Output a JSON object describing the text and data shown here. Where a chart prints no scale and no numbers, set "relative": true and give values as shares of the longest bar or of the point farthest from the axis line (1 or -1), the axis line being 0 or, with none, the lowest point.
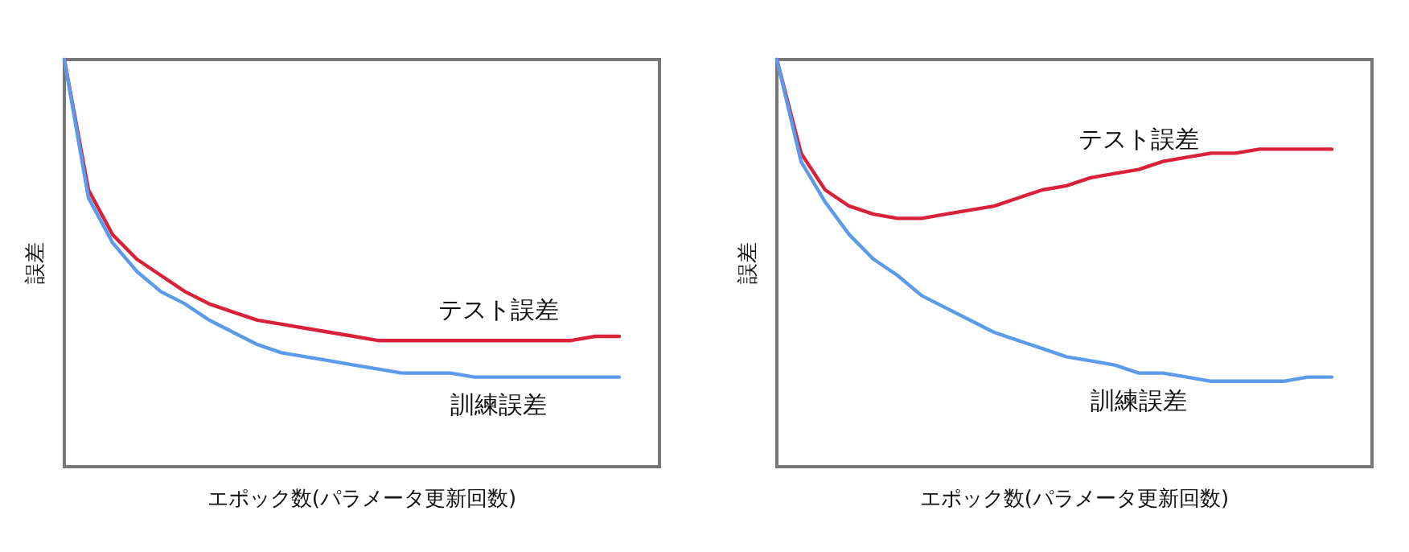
{
  "chart_data": [
    {
      "type": "line",
      "relative": true,
      "xlabel": "エポック数(パラメータ更新回数)",
      "ylabel": "誤差",
      "categories": [
        null,
        null,
        null,
        null,
        null,
        null,
        null,
        null,
        null,
        null,
        null,
        null,
        null,
        null,
        null,
        null,
        null,
        null,
        null,
        null,
        null,
        null,
        null,
        null
      ],
      "series": [
        {
          "name": "テスト誤差",
          "color": "#d9213a",
          "values": [
            1.0,
            0.68,
            0.57,
            0.51,
            0.47,
            0.43,
            0.4,
            0.38,
            0.36,
            0.35,
            0.34,
            0.33,
            0.32,
            0.31,
            0.31,
            0.31,
            0.31,
            0.31,
            0.31,
            0.31,
            0.31,
            0.31,
            0.32,
            0.32
          ]
        },
        {
          "name": "訓練誤差",
          "color": "#5b9bea",
          "values": [
            1.0,
            0.66,
            0.55,
            0.48,
            0.43,
            0.4,
            0.36,
            0.33,
            0.3,
            0.28,
            0.27,
            0.26,
            0.25,
            0.24,
            0.23,
            0.23,
            0.23,
            0.22,
            0.22,
            0.22,
            0.22,
            0.22,
            0.22,
            0.22
          ]
        }
      ]
    },
    {
      "type": "line",
      "relative": true,
      "xlabel": "エポック数(パラメータ更新回数)",
      "ylabel": "誤差",
      "categories": [
        null,
        null,
        null,
        null,
        null,
        null,
        null,
        null,
        null,
        null,
        null,
        null,
        null,
        null,
        null,
        null,
        null,
        null,
        null,
        null,
        null,
        null,
        null,
        null
      ],
      "series": [
        {
          "name": "テスト誤差",
          "color": "#d9213a",
          "values": [
            1.0,
            0.77,
            0.68,
            0.64,
            0.62,
            0.61,
            0.61,
            0.62,
            0.63,
            0.64,
            0.66,
            0.68,
            0.69,
            0.71,
            0.72,
            0.73,
            0.75,
            0.76,
            0.77,
            0.77,
            0.78,
            0.78,
            0.78,
            0.78
          ]
        },
        {
          "name": "訓練誤差",
          "color": "#5b9bea",
          "values": [
            1.0,
            0.75,
            0.65,
            0.57,
            0.51,
            0.47,
            0.42,
            0.39,
            0.36,
            0.33,
            0.31,
            0.29,
            0.27,
            0.26,
            0.25,
            0.23,
            0.23,
            0.22,
            0.21,
            0.21,
            0.21,
            0.21,
            0.22,
            0.22
          ]
        }
      ]
    }
  ]
}
